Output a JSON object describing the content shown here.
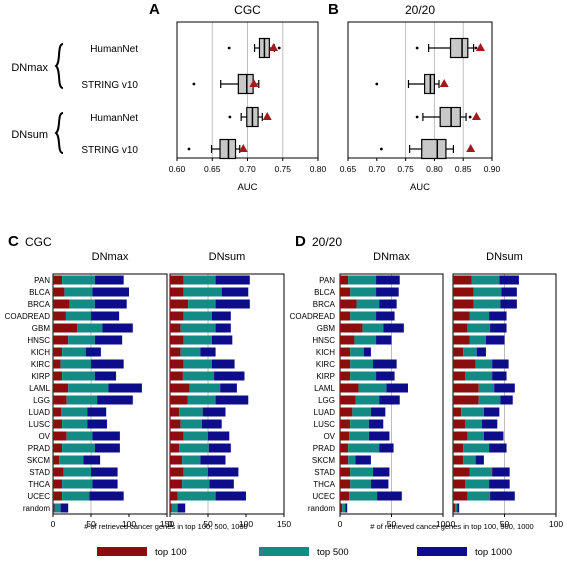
{
  "colors": {
    "top100": "#8b0d0d",
    "top500": "#128b85",
    "top1000": "#0d0d8c",
    "box_fill": "#c8c8c8",
    "triangle": "#a11b1b",
    "grid": "#bdbdbd"
  },
  "top": {
    "row_groups": [
      {
        "label": "DNmax",
        "rows": [
          "HumanNet",
          "STRING v10"
        ]
      },
      {
        "label": "DNsum",
        "rows": [
          "HumanNet",
          "STRING v10"
        ]
      }
    ],
    "xlabel": "AUC",
    "panels": [
      {
        "letter": "A",
        "title": "CGC",
        "xlim": [
          0.6,
          0.8
        ],
        "ticks": [
          "0.60",
          "0.65",
          "0.70",
          "0.75",
          "0.80"
        ],
        "gridlines": [
          0.65,
          0.7,
          0.75
        ],
        "boxes": [
          {
            "wmin": 0.71,
            "q1": 0.717,
            "median": 0.724,
            "q3": 0.731,
            "wmax": 0.738,
            "outliers": [
              0.674,
              0.745
            ],
            "triangle": 0.737
          },
          {
            "wmin": 0.662,
            "q1": 0.687,
            "median": 0.699,
            "q3": 0.708,
            "wmax": 0.716,
            "outliers": [
              0.624
            ],
            "triangle": 0.709
          },
          {
            "wmin": 0.691,
            "q1": 0.699,
            "median": 0.707,
            "q3": 0.715,
            "wmax": 0.721,
            "outliers": [
              0.675
            ],
            "triangle": 0.728
          },
          {
            "wmin": 0.649,
            "q1": 0.661,
            "median": 0.673,
            "q3": 0.683,
            "wmax": 0.689,
            "outliers": [
              0.617
            ],
            "triangle": 0.694
          }
        ]
      },
      {
        "letter": "B",
        "title": "20/20",
        "xlim": [
          0.65,
          0.9
        ],
        "ticks": [
          "0.65",
          "0.70",
          "0.75",
          "0.80",
          "0.85",
          "0.90"
        ],
        "gridlines": [
          0.75,
          0.8,
          0.85
        ],
        "boxes": [
          {
            "wmin": 0.79,
            "q1": 0.828,
            "median": 0.848,
            "q3": 0.858,
            "wmax": 0.868,
            "outliers": [
              0.77,
              0.872
            ],
            "triangle": 0.88
          },
          {
            "wmin": 0.755,
            "q1": 0.783,
            "median": 0.793,
            "q3": 0.8,
            "wmax": 0.808,
            "outliers": [
              0.7
            ],
            "triangle": 0.817
          },
          {
            "wmin": 0.78,
            "q1": 0.81,
            "median": 0.829,
            "q3": 0.845,
            "wmax": 0.855,
            "outliers": [
              0.77,
              0.862
            ],
            "triangle": 0.873
          },
          {
            "wmin": 0.757,
            "q1": 0.778,
            "median": 0.805,
            "q3": 0.82,
            "wmax": 0.833,
            "outliers": [
              0.708
            ],
            "triangle": 0.863
          }
        ]
      }
    ]
  },
  "bottom": {
    "categories": [
      "PAN",
      "BLCA",
      "BRCA",
      "COADREAD",
      "GBM",
      "HNSC",
      "KICH",
      "KIRC",
      "KIRP",
      "LAML",
      "LGG",
      "LUAD",
      "LUSC",
      "OV",
      "PRAD",
      "SKCM",
      "STAD",
      "THCA",
      "UCEC",
      "random"
    ],
    "xlabel": "# of retrieved cancer genes in top 100, 500, 1000",
    "groups": [
      {
        "letter": "C",
        "title": "CGC",
        "xlim": [
          0,
          150
        ],
        "ticks": [
          "0",
          "50",
          "100",
          "150"
        ],
        "gridline": 50,
        "subpanels": [
          {
            "title": "DNmax",
            "top100": [
              12,
              15,
              22,
              17,
              32,
              20,
              12,
              10,
              12,
              20,
              18,
              11,
              12,
              18,
              12,
              8,
              14,
              12,
              12,
              2
            ],
            "top500": [
              55,
              52,
              55,
              50,
              65,
              55,
              43,
              50,
              55,
              73,
              58,
              45,
              45,
              52,
              55,
              40,
              50,
              52,
              48,
              10
            ],
            "top1000": [
              93,
              100,
              97,
              87,
              105,
              91,
              63,
              93,
              83,
              117,
              105,
              70,
              71,
              88,
              88,
              62,
              85,
              85,
              93,
              20
            ]
          },
          {
            "title": "DNsum",
            "top100": [
              18,
              18,
              24,
              18,
              14,
              18,
              14,
              18,
              17,
              26,
              23,
              12,
              14,
              18,
              12,
              16,
              18,
              16,
              10,
              2
            ],
            "top500": [
              60,
              68,
              60,
              55,
              60,
              55,
              40,
              55,
              58,
              66,
              60,
              43,
              42,
              50,
              51,
              40,
              50,
              52,
              60,
              10
            ],
            "top1000": [
              105,
              103,
              105,
              80,
              80,
              82,
              60,
              85,
              98,
              88,
              103,
              73,
              68,
              78,
              80,
              73,
              90,
              84,
              100,
              20
            ]
          }
        ]
      },
      {
        "letter": "D",
        "title": "20/20",
        "xlim": [
          0,
          100
        ],
        "ticks": [
          "0",
          "50",
          "100"
        ],
        "gridline": 50,
        "subpanels": [
          {
            "title": "DNmax",
            "top100": [
              8,
              10,
              16,
              10,
              22,
              14,
              10,
              10,
              10,
              18,
              15,
              12,
              10,
              9,
              8,
              8,
              10,
              10,
              9,
              2
            ],
            "top500": [
              35,
              35,
              38,
              35,
              42,
              35,
              23,
              32,
              35,
              45,
              38,
              30,
              28,
              28,
              38,
              15,
              32,
              30,
              36,
              5
            ],
            "top1000": [
              58,
              57,
              55,
              53,
              62,
              50,
              30,
              55,
              53,
              66,
              58,
              44,
              42,
              48,
              52,
              30,
              48,
              47,
              60,
              7
            ]
          },
          {
            "title": "DNsum",
            "top100": [
              18,
              20,
              20,
              16,
              14,
              16,
              10,
              22,
              12,
              25,
              25,
              8,
              12,
              14,
              10,
              10,
              16,
              12,
              14,
              2
            ],
            "top500": [
              45,
              47,
              46,
              35,
              36,
              32,
              23,
              38,
              38,
              40,
              46,
              30,
              28,
              30,
              35,
              22,
              38,
              35,
              36,
              4
            ],
            "top1000": [
              64,
              62,
              62,
              52,
              52,
              50,
              32,
              54,
              52,
              60,
              58,
              45,
              43,
              49,
              52,
              30,
              55,
              55,
              60,
              6
            ]
          }
        ]
      }
    ]
  },
  "legend": [
    {
      "key": "top100",
      "label": "top 100"
    },
    {
      "key": "top500",
      "label": "top 500"
    },
    {
      "key": "top1000",
      "label": "top 1000"
    }
  ],
  "chart_data": [
    {
      "type": "box",
      "title": "CGC",
      "xlabel": "AUC",
      "xlim": [
        0.6,
        0.8
      ],
      "categories": [
        "DNmax HumanNet",
        "DNmax STRING v10",
        "DNsum HumanNet",
        "DNsum STRING v10"
      ],
      "medians": [
        0.724,
        0.699,
        0.707,
        0.673
      ],
      "triangles": [
        0.737,
        0.709,
        0.728,
        0.694
      ]
    },
    {
      "type": "box",
      "title": "20/20",
      "xlabel": "AUC",
      "xlim": [
        0.65,
        0.9
      ],
      "categories": [
        "DNmax HumanNet",
        "DNmax STRING v10",
        "DNsum HumanNet",
        "DNsum STRING v10"
      ],
      "medians": [
        0.848,
        0.793,
        0.829,
        0.805
      ],
      "triangles": [
        0.88,
        0.817,
        0.873,
        0.863
      ]
    },
    {
      "type": "bar",
      "title": "CGC",
      "xlabel": "# of retrieved cancer genes in top 100, 500, 1000",
      "xlim": [
        0,
        150
      ],
      "series_note_keys": [
        "top 100",
        "top 500",
        "top 1000"
      ]
    },
    {
      "type": "bar",
      "title": "20/20",
      "xlabel": "# of retrieved cancer genes in top 100, 500, 1000",
      "xlim": [
        0,
        100
      ],
      "series_note_keys": [
        "top 100",
        "top 500",
        "top 1000"
      ]
    }
  ]
}
